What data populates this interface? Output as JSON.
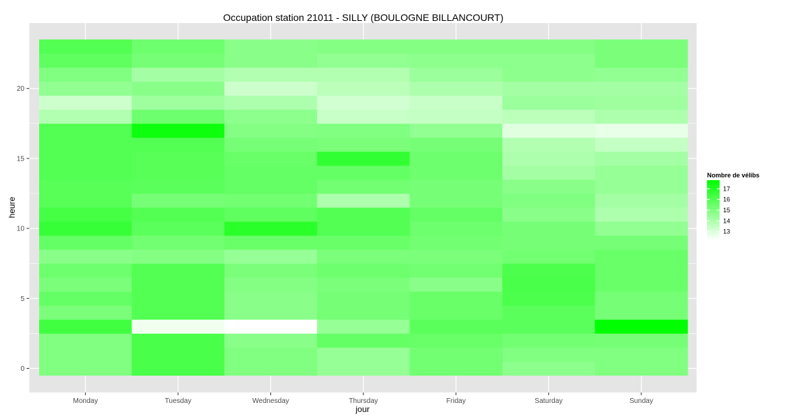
{
  "chart_data": {
    "type": "heatmap",
    "title": "Occupation station 21011 - SILLY (BOULOGNE BILLANCOURT)",
    "xlabel": "jour",
    "ylabel": "heure",
    "categories": [
      "Monday",
      "Tuesday",
      "Wednesday",
      "Thursday",
      "Friday",
      "Saturday",
      "Sunday"
    ],
    "hours": [
      0,
      1,
      2,
      3,
      4,
      5,
      6,
      7,
      8,
      9,
      10,
      11,
      12,
      13,
      14,
      15,
      16,
      17,
      18,
      19,
      20,
      21,
      22,
      23
    ],
    "y_ticks": [
      0,
      5,
      10,
      15,
      20
    ],
    "ylim": [
      -0.5,
      23.5
    ],
    "grid": true,
    "values": [
      [
        15.0,
        15.0,
        15.0,
        16.4,
        15.1,
        15.6,
        15.1,
        15.4,
        14.8,
        15.6,
        16.6,
        16.3,
        15.9,
        15.9,
        16.0,
        16.0,
        16.0,
        16.0,
        13.9,
        13.3,
        14.6,
        15.0,
        15.7,
        16.0
      ],
      [
        16.2,
        16.2,
        16.2,
        12.5,
        16.0,
        16.0,
        16.0,
        16.0,
        14.9,
        15.3,
        15.8,
        16.0,
        15.2,
        15.8,
        15.9,
        15.9,
        16.0,
        17.5,
        15.4,
        14.3,
        14.8,
        14.2,
        15.2,
        15.4
      ],
      [
        15.0,
        15.0,
        14.8,
        12.2,
        14.8,
        14.8,
        14.9,
        15.1,
        14.5,
        15.5,
        16.9,
        15.7,
        15.3,
        15.6,
        15.6,
        15.5,
        15.2,
        14.9,
        14.7,
        14.0,
        13.3,
        13.9,
        14.8,
        14.8
      ],
      [
        14.5,
        14.5,
        15.6,
        14.5,
        15.2,
        15.2,
        15.1,
        15.4,
        15.1,
        15.5,
        16.0,
        16.0,
        14.0,
        15.3,
        15.6,
        16.7,
        15.1,
        15.0,
        13.4,
        13.2,
        13.7,
        13.9,
        14.6,
        14.9
      ],
      [
        15.3,
        15.3,
        15.5,
        15.8,
        15.5,
        15.5,
        14.8,
        15.3,
        15.1,
        15.3,
        15.4,
        15.6,
        15.2,
        15.2,
        15.4,
        15.4,
        15.2,
        14.6,
        13.5,
        13.4,
        14.0,
        14.4,
        14.7,
        14.9
      ],
      [
        14.7,
        15.0,
        15.3,
        15.8,
        15.8,
        16.1,
        16.2,
        16.1,
        15.3,
        15.2,
        15.2,
        14.8,
        15.0,
        14.8,
        14.2,
        14.0,
        13.9,
        12.9,
        13.7,
        14.4,
        14.2,
        14.7,
        14.7,
        14.9
      ],
      [
        15.0,
        15.0,
        15.2,
        17.8,
        15.2,
        15.2,
        15.5,
        15.5,
        15.5,
        15.2,
        14.6,
        14.0,
        14.2,
        14.5,
        14.5,
        14.2,
        13.5,
        12.7,
        14.0,
        14.3,
        14.2,
        14.6,
        15.1,
        15.1
      ]
    ],
    "legend": {
      "title": "Nombre de vélibs",
      "position": "right",
      "breaks": [
        17,
        16,
        15,
        14,
        13
      ],
      "range": [
        12.2,
        17.8
      ]
    },
    "colors": {
      "low": "#ffffff",
      "high": "#00ff00",
      "panel_background": "#e5e5e5",
      "grid": "#ffffff",
      "tick_text": "#4d4d4d"
    }
  }
}
